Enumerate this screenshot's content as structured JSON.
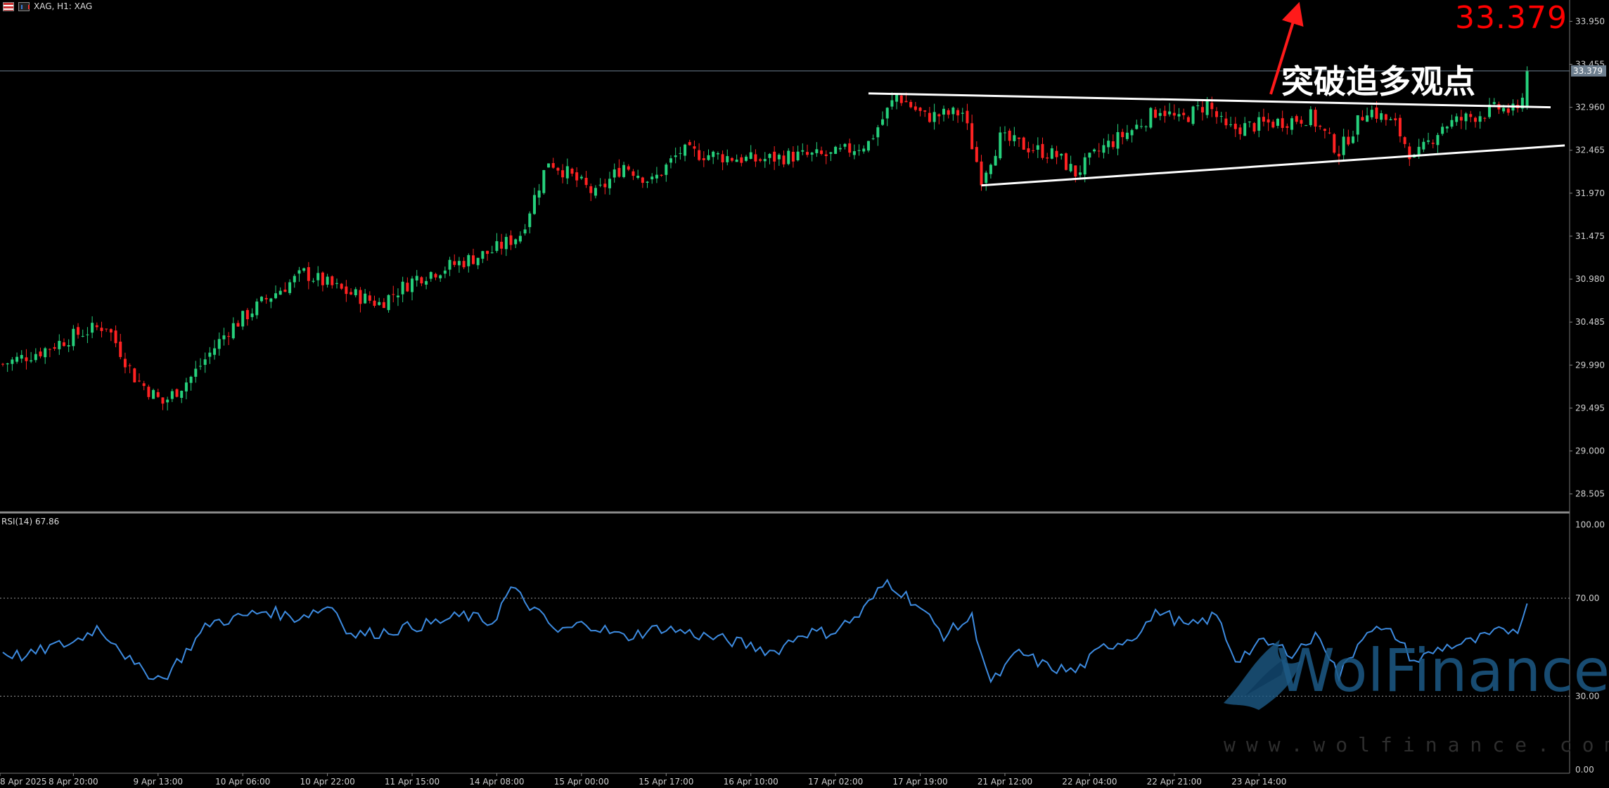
{
  "header": {
    "symbol_info": "XAG, H1:  XAG"
  },
  "price_callout": "33.379",
  "annotation": "突破追多观点",
  "current_price_tag": "33.379",
  "rsi_label": "RSI(14) 67.86",
  "watermark": {
    "brand": "WolFinance",
    "url": "www.wolfinance.com"
  },
  "colors": {
    "bull": "#26d07c",
    "bear": "#ff2222",
    "rsi": "#3d8be0",
    "annotation_arrow": "#ff1a1a",
    "trendline": "#ffffff"
  },
  "chart_data": [
    {
      "type": "candlestick",
      "symbol": "XAG",
      "timeframe": "H1",
      "ylim": [
        28.3,
        34.05
      ],
      "y_ticks": [
        "33.950",
        "33.455",
        "32.960",
        "32.465",
        "31.970",
        "31.475",
        "30.980",
        "30.485",
        "29.990",
        "29.495",
        "29.000",
        "28.505"
      ],
      "x_ticks": [
        "8 Apr 2025",
        "8 Apr 20:00",
        "9 Apr 13:00",
        "10 Apr 06:00",
        "10 Apr 22:00",
        "11 Apr 15:00",
        "14 Apr 08:00",
        "15 Apr 00:00",
        "15 Apr 17:00",
        "16 Apr 10:00",
        "17 Apr 02:00",
        "17 Apr 19:00",
        "21 Apr 12:00",
        "22 Apr 04:00",
        "22 Apr 21:00",
        "23 Apr 14:00"
      ],
      "close_anchors": [
        [
          0,
          30.0
        ],
        [
          8,
          30.15
        ],
        [
          16,
          30.35
        ],
        [
          22,
          30.45
        ],
        [
          28,
          29.85
        ],
        [
          34,
          29.55
        ],
        [
          40,
          29.85
        ],
        [
          48,
          30.4
        ],
        [
          56,
          30.75
        ],
        [
          64,
          31.05
        ],
        [
          72,
          30.85
        ],
        [
          80,
          30.7
        ],
        [
          88,
          31.0
        ],
        [
          96,
          31.15
        ],
        [
          104,
          31.3
        ],
        [
          110,
          31.5
        ],
        [
          116,
          32.35
        ],
        [
          120,
          32.2
        ],
        [
          126,
          31.95
        ],
        [
          132,
          32.3
        ],
        [
          138,
          32.1
        ],
        [
          144,
          32.45
        ],
        [
          152,
          32.4
        ],
        [
          160,
          32.35
        ],
        [
          168,
          32.4
        ],
        [
          176,
          32.4
        ],
        [
          184,
          32.55
        ],
        [
          190,
          33.1
        ],
        [
          196,
          32.85
        ],
        [
          204,
          32.9
        ],
        [
          208,
          32.15
        ],
        [
          212,
          32.6
        ],
        [
          218,
          32.5
        ],
        [
          224,
          32.4
        ],
        [
          228,
          32.2
        ],
        [
          234,
          32.5
        ],
        [
          240,
          32.7
        ],
        [
          246,
          32.95
        ],
        [
          250,
          32.8
        ],
        [
          256,
          33.0
        ],
        [
          260,
          32.7
        ],
        [
          266,
          32.75
        ],
        [
          272,
          32.8
        ],
        [
          278,
          32.85
        ],
        [
          284,
          32.45
        ],
        [
          290,
          32.95
        ],
        [
          296,
          32.75
        ],
        [
          300,
          32.35
        ],
        [
          306,
          32.75
        ],
        [
          312,
          32.85
        ],
        [
          318,
          32.95
        ],
        [
          322,
          32.9
        ],
        [
          324,
          33.379
        ]
      ],
      "price_line": 33.379,
      "trendlines": [
        {
          "name": "upper",
          "from": [
            184,
            33.12
          ],
          "to": [
            329,
            32.96
          ]
        },
        {
          "name": "lower",
          "from": [
            208,
            32.06
          ],
          "to": [
            332,
            32.52
          ]
        }
      ]
    },
    {
      "type": "line",
      "name": "RSI(14)",
      "last_value": 67.86,
      "ylim": [
        0,
        100
      ],
      "y_ticks": [
        "100.00",
        "70.00",
        "30.00",
        "0.00"
      ],
      "levels": [
        70,
        30
      ],
      "anchors": [
        [
          0,
          48
        ],
        [
          5,
          46
        ],
        [
          10,
          50
        ],
        [
          15,
          52
        ],
        [
          20,
          58
        ],
        [
          24,
          52
        ],
        [
          28,
          42
        ],
        [
          34,
          37
        ],
        [
          38,
          46
        ],
        [
          44,
          60
        ],
        [
          50,
          62
        ],
        [
          56,
          65
        ],
        [
          62,
          62
        ],
        [
          70,
          67
        ],
        [
          74,
          55
        ],
        [
          80,
          56
        ],
        [
          86,
          58
        ],
        [
          92,
          60
        ],
        [
          98,
          63
        ],
        [
          104,
          60
        ],
        [
          108,
          74
        ],
        [
          112,
          67
        ],
        [
          118,
          56
        ],
        [
          124,
          60
        ],
        [
          132,
          54
        ],
        [
          140,
          58
        ],
        [
          148,
          55
        ],
        [
          156,
          52
        ],
        [
          164,
          48
        ],
        [
          170,
          56
        ],
        [
          176,
          56
        ],
        [
          182,
          63
        ],
        [
          188,
          77
        ],
        [
          194,
          68
        ],
        [
          200,
          55
        ],
        [
          206,
          62
        ],
        [
          210,
          35
        ],
        [
          216,
          48
        ],
        [
          222,
          42
        ],
        [
          228,
          40
        ],
        [
          234,
          50
        ],
        [
          240,
          54
        ],
        [
          246,
          65
        ],
        [
          252,
          58
        ],
        [
          258,
          63
        ],
        [
          262,
          45
        ],
        [
          268,
          52
        ],
        [
          274,
          48
        ],
        [
          280,
          55
        ],
        [
          284,
          38
        ],
        [
          290,
          58
        ],
        [
          296,
          55
        ],
        [
          300,
          44
        ],
        [
          306,
          50
        ],
        [
          312,
          52
        ],
        [
          318,
          56
        ],
        [
          322,
          58
        ],
        [
          324,
          67.86
        ]
      ]
    }
  ]
}
